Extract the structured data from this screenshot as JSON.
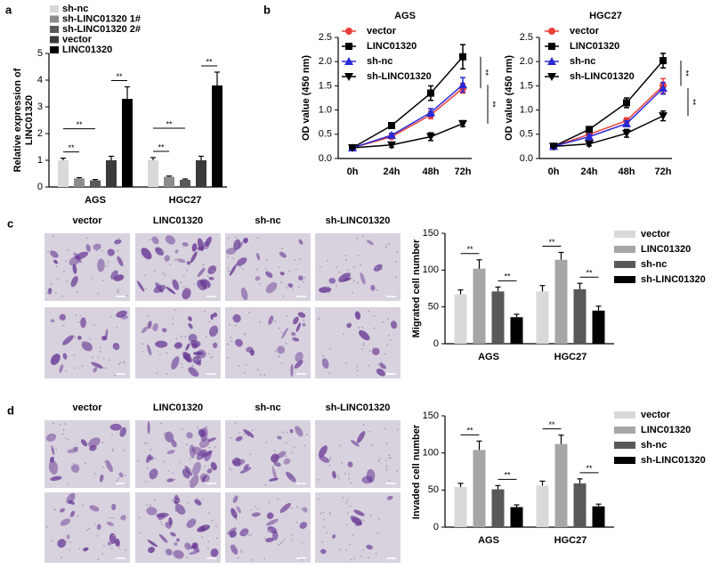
{
  "panel_labels": [
    "a",
    "b",
    "c",
    "d"
  ],
  "micrographs": [
    {
      "columns": [
        "vector",
        "LINC01320",
        "sh-nc",
        "sh-LINC01320"
      ]
    },
    {
      "columns": [
        "vector",
        "LINC01320",
        "sh-nc",
        "sh-LINC01320"
      ]
    }
  ],
  "chart_data": [
    {
      "type": "bar",
      "ylabel": [
        "Relative expression of",
        "LINC01320"
      ],
      "categories": [
        "AGS",
        "HGC27"
      ],
      "series": [
        {
          "name": "sh-nc",
          "color": "#d9d9d9",
          "values": [
            1.0,
            1.0
          ],
          "errors": [
            0.08,
            0.1
          ]
        },
        {
          "name": "sh-LINC01320 1#",
          "color": "#8c8c8c",
          "values": [
            0.32,
            0.38
          ],
          "errors": [
            0.03,
            0.03
          ]
        },
        {
          "name": "sh-LINC01320 2#",
          "color": "#5a5a5a",
          "values": [
            0.25,
            0.27
          ],
          "errors": [
            0.03,
            0.03
          ]
        },
        {
          "name": "vector",
          "color": "#3a3a3a",
          "values": [
            1.0,
            1.0
          ],
          "errors": [
            0.15,
            0.15
          ]
        },
        {
          "name": "LINC01320",
          "color": "#000000",
          "values": [
            3.3,
            3.8
          ],
          "errors": [
            0.45,
            0.5
          ]
        }
      ],
      "ylim": [
        0,
        5
      ],
      "yticks": [
        0,
        1,
        2,
        3,
        4,
        5
      ],
      "annotations": [
        "**",
        "**",
        "**",
        "**",
        "**",
        "**"
      ]
    },
    {
      "type": "line",
      "title": "AGS",
      "ylabel": "OD value (450 nm)",
      "categories": [
        "0h",
        "24h",
        "48h",
        "72h"
      ],
      "series": [
        {
          "name": "vector",
          "color": "#e8413b",
          "marker": "circle",
          "values": [
            0.22,
            0.45,
            0.9,
            1.45
          ],
          "errors": [
            0.02,
            0.04,
            0.08,
            0.1
          ]
        },
        {
          "name": "LINC01320",
          "color": "#000000",
          "marker": "square",
          "values": [
            0.22,
            0.68,
            1.35,
            2.1
          ],
          "errors": [
            0.03,
            0.05,
            0.15,
            0.25
          ]
        },
        {
          "name": "sh-nc",
          "color": "#2a2ad4",
          "marker": "triangle",
          "values": [
            0.22,
            0.48,
            0.95,
            1.52
          ],
          "errors": [
            0.02,
            0.04,
            0.08,
            0.15
          ]
        },
        {
          "name": "sh-LINC01320",
          "color": "#000000",
          "marker": "triangle-down",
          "values": [
            0.22,
            0.28,
            0.45,
            0.72
          ],
          "errors": [
            0.02,
            0.05,
            0.08,
            0.06
          ]
        }
      ],
      "ylim": [
        0,
        2.5
      ],
      "yticks": [
        {
          "value": 0,
          "label": "0.0"
        },
        0.5,
        {
          "value": 1,
          "label": "1.0"
        },
        1.5,
        {
          "value": 2,
          "label": "2.0"
        },
        2.5
      ],
      "annotations": [
        "**",
        "**"
      ]
    },
    {
      "type": "line",
      "title": "HGC27",
      "ylabel": "OD value (450 nm)",
      "categories": [
        "0h",
        "24h",
        "48h",
        "72h"
      ],
      "series": [
        {
          "name": "vector",
          "color": "#e8413b",
          "marker": "circle",
          "values": [
            0.25,
            0.5,
            0.78,
            1.5
          ],
          "errors": [
            0.02,
            0.04,
            0.06,
            0.15
          ]
        },
        {
          "name": "LINC01320",
          "color": "#000000",
          "marker": "square",
          "values": [
            0.25,
            0.6,
            1.15,
            2.02
          ],
          "errors": [
            0.03,
            0.05,
            0.1,
            0.15
          ]
        },
        {
          "name": "sh-nc",
          "color": "#2a2ad4",
          "marker": "triangle",
          "values": [
            0.25,
            0.45,
            0.72,
            1.45
          ],
          "errors": [
            0.02,
            0.04,
            0.06,
            0.12
          ]
        },
        {
          "name": "sh-LINC01320",
          "color": "#000000",
          "marker": "triangle-down",
          "values": [
            0.25,
            0.3,
            0.52,
            0.88
          ],
          "errors": [
            0.02,
            0.04,
            0.08,
            0.1
          ]
        }
      ],
      "ylim": [
        0,
        2.5
      ],
      "yticks": [
        {
          "value": 0,
          "label": "0.0"
        },
        0.5,
        {
          "value": 1,
          "label": "1.0"
        },
        1.5,
        {
          "value": 2,
          "label": "2.0"
        },
        2.5
      ],
      "annotations": [
        "**",
        "**"
      ]
    },
    {
      "type": "bar",
      "ylabel": "Migrated cell number",
      "categories": [
        "AGS",
        "HGC27"
      ],
      "series": [
        {
          "name": "vector",
          "color": "#d9d9d9",
          "values": [
            67,
            71
          ],
          "errors": [
            6,
            8
          ]
        },
        {
          "name": "LINC01320",
          "color": "#a6a6a6",
          "values": [
            102,
            114
          ],
          "errors": [
            12,
            10
          ]
        },
        {
          "name": "sh-nc",
          "color": "#595959",
          "values": [
            71,
            74
          ],
          "errors": [
            6,
            8
          ]
        },
        {
          "name": "sh-LINC01320",
          "color": "#000000",
          "values": [
            36,
            45
          ],
          "errors": [
            4,
            6
          ]
        }
      ],
      "ylim": [
        0,
        150
      ],
      "yticks": [
        0,
        50,
        100,
        150
      ],
      "annotations": [
        "**",
        "**",
        "**",
        "**"
      ]
    },
    {
      "type": "bar",
      "ylabel": "Invaded cell number",
      "categories": [
        "AGS",
        "HGC27"
      ],
      "series": [
        {
          "name": "vector",
          "color": "#d9d9d9",
          "values": [
            54,
            56
          ],
          "errors": [
            5,
            6
          ]
        },
        {
          "name": "LINC01320",
          "color": "#a6a6a6",
          "values": [
            104,
            112
          ],
          "errors": [
            12,
            12
          ]
        },
        {
          "name": "sh-nc",
          "color": "#595959",
          "values": [
            51,
            59
          ],
          "errors": [
            5,
            6
          ]
        },
        {
          "name": "sh-LINC01320",
          "color": "#000000",
          "values": [
            27,
            28
          ],
          "errors": [
            3,
            3
          ]
        }
      ],
      "ylim": [
        0,
        150
      ],
      "yticks": [
        0,
        50,
        100,
        150
      ],
      "annotations": [
        "**",
        "**",
        "**",
        "**"
      ]
    }
  ]
}
